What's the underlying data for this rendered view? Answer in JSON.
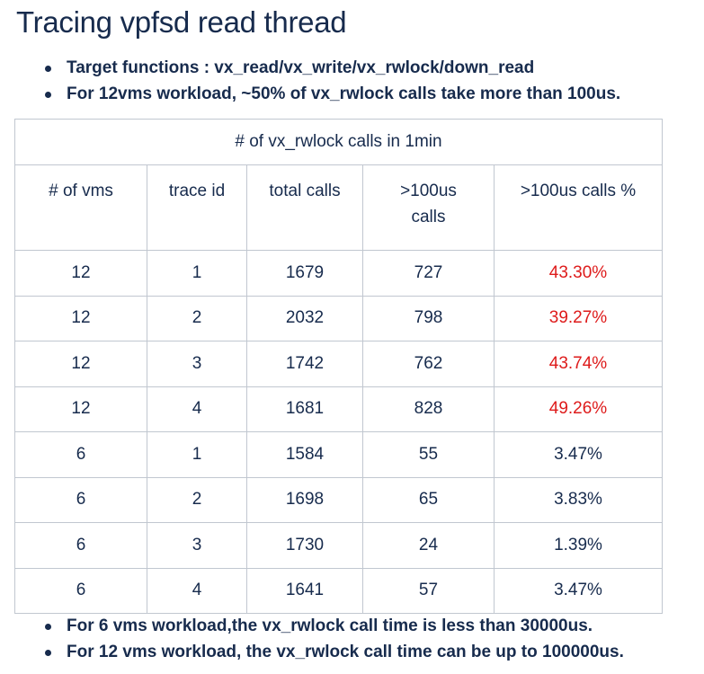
{
  "title": "Tracing vpfsd read thread",
  "top_bullets": [
    "Target functions : vx_read/vx_write/vx_rwlock/down_read",
    "For 12vms workload, ~50% of vx_rwlock calls take more than 100us."
  ],
  "table": {
    "caption": "# of vx_rwlock calls in 1min",
    "headers": {
      "vms": "# of vms",
      "trace": "trace id",
      "total": "total calls",
      "over_line1": ">100us",
      "over_line2": "calls",
      "pct": ">100us calls %"
    },
    "rows": [
      {
        "vms": "12",
        "trace": "1",
        "total": "1679",
        "over": "727",
        "pct": "43.30%"
      },
      {
        "vms": "12",
        "trace": "2",
        "total": "2032",
        "over": "798",
        "pct": "39.27%"
      },
      {
        "vms": "12",
        "trace": "3",
        "total": "1742",
        "over": "762",
        "pct": "43.74%"
      },
      {
        "vms": "12",
        "trace": "4",
        "total": "1681",
        "over": "828",
        "pct": "49.26%"
      },
      {
        "vms": "6",
        "trace": "1",
        "total": "1584",
        "over": "55",
        "pct": "3.47%"
      },
      {
        "vms": "6",
        "trace": "2",
        "total": "1698",
        "over": "65",
        "pct": "3.83%"
      },
      {
        "vms": "6",
        "trace": "3",
        "total": "1730",
        "over": "24",
        "pct": "1.39%"
      },
      {
        "vms": "6",
        "trace": "4",
        "total": "1641",
        "over": "57",
        "pct": "3.47%"
      }
    ],
    "highlight_color": "#de1b1b"
  },
  "bottom_bullets": [
    "For 6 vms workload,the vx_rwlock call time is less than 30000us.",
    "For 12 vms workload, the vx_rwlock call time can be up to 100000us."
  ]
}
